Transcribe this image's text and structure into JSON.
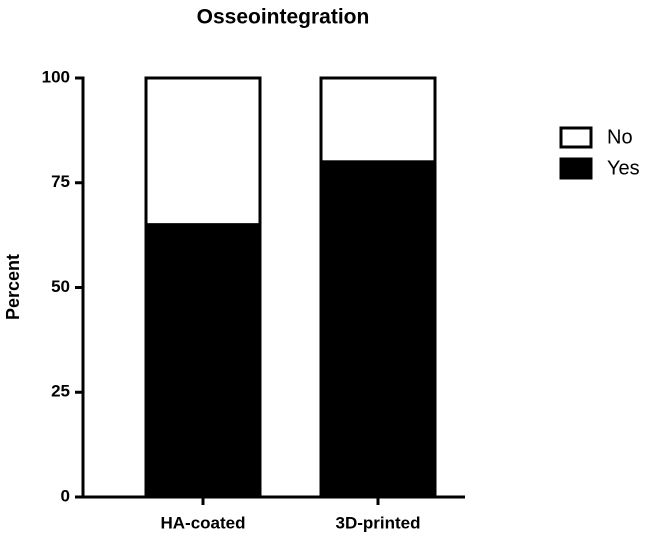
{
  "chart_data": {
    "type": "stacked_bar",
    "title": "Osseointegration",
    "y_label": "Percent",
    "categories": [
      "HA-coated",
      "3D-printed"
    ],
    "series": [
      {
        "name": "Yes",
        "color": "#000000",
        "values": [
          65,
          80
        ]
      },
      {
        "name": "No",
        "color": "#ffffff",
        "values": [
          35,
          20
        ]
      }
    ],
    "ylim": [
      0,
      100
    ],
    "yticks": [
      0,
      25,
      50,
      75,
      100
    ]
  }
}
